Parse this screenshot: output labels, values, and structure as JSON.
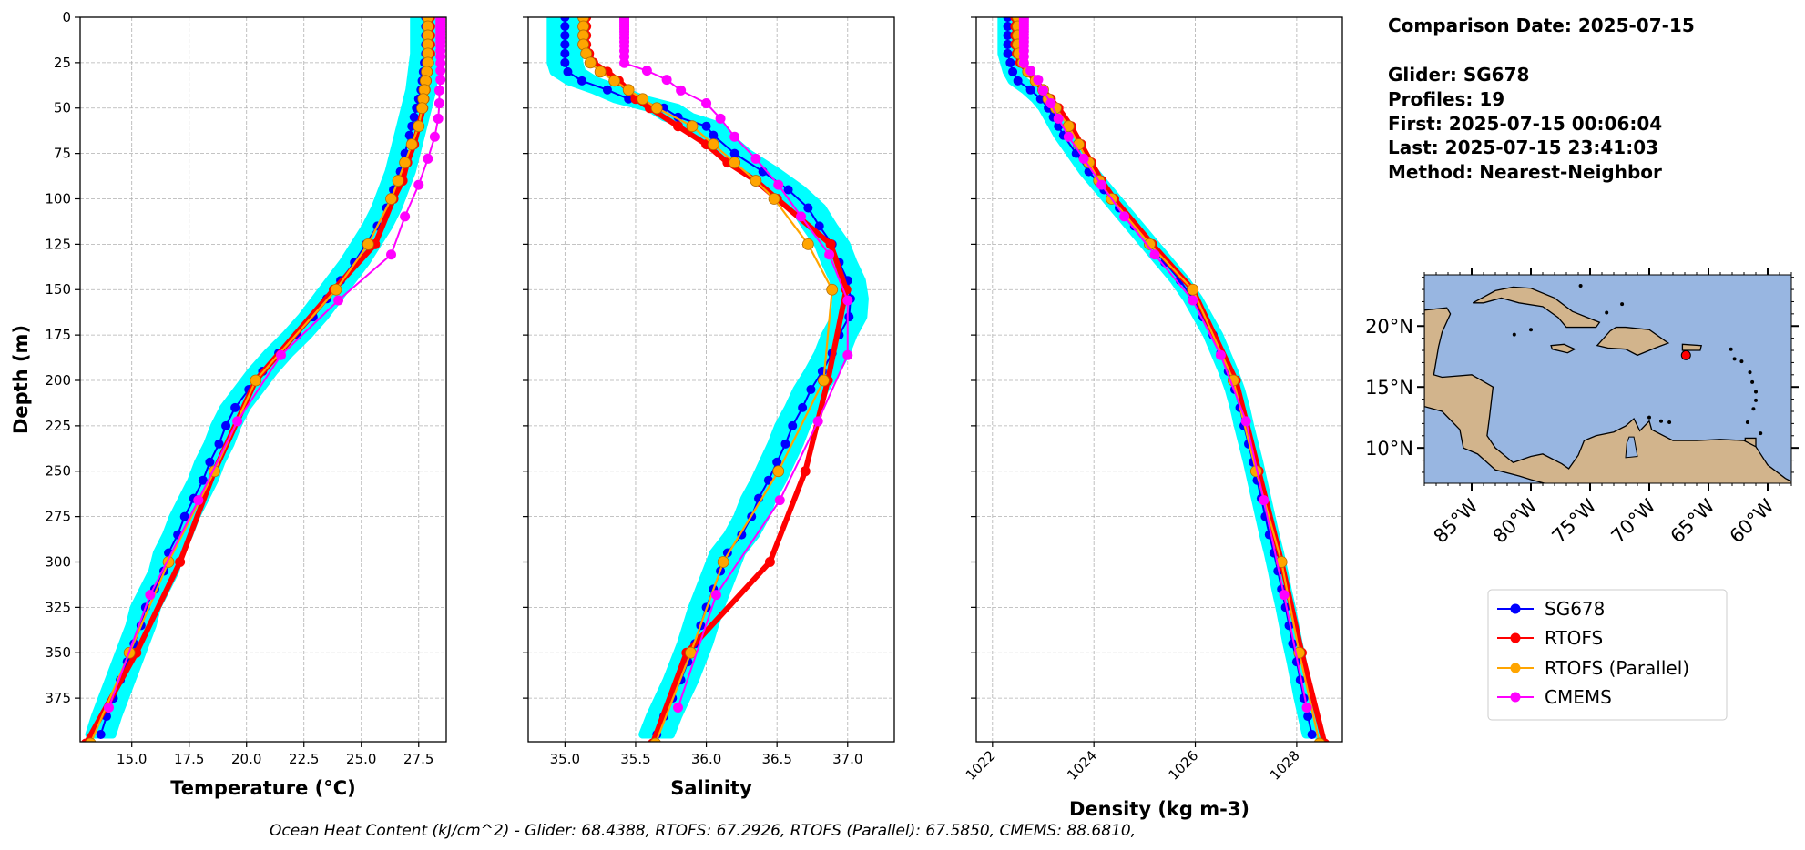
{
  "info": {
    "lines": [
      "Comparison Date: 2025-07-15",
      "",
      "Glider: SG678",
      "Profiles: 19",
      "First: 2025-07-15 00:06:04",
      "Last: 2025-07-15 23:41:03",
      "Method: Nearest-Neighbor"
    ]
  },
  "footer": "Ocean Heat Content (kJ/cm^2) - Glider: 68.4388,  RTOFS: 67.2926,  RTOFS (Parallel): 67.5850,  CMEMS: 88.6810,",
  "legend": {
    "position": "right, below map",
    "entries": [
      {
        "label": "SG678",
        "color": "#0000ff"
      },
      {
        "label": "RTOFS",
        "color": "#ff0000"
      },
      {
        "label": "RTOFS (Parallel)",
        "color": "#ffa500"
      },
      {
        "label": "CMEMS",
        "color": "#ff00ff"
      }
    ]
  },
  "chart_data": [
    {
      "type": "line",
      "id": "temperature",
      "xlabel": "Temperature (°C)",
      "ylabel": "Depth (m)",
      "xlim": [
        12.75,
        28.7
      ],
      "ylim": [
        399,
        0
      ],
      "grid": true,
      "xticks": [
        "15.0",
        "17.5",
        "20.0",
        "22.5",
        "25.0",
        "27.5"
      ],
      "yticks": [
        "0",
        "25",
        "50",
        "75",
        "100",
        "125",
        "150",
        "175",
        "200",
        "225",
        "250",
        "275",
        "300",
        "325",
        "350",
        "375"
      ]
    },
    {
      "type": "line",
      "id": "salinity",
      "xlabel": "Salinity",
      "xlim": [
        34.74,
        37.33
      ],
      "ylim": [
        399,
        0
      ],
      "grid": true,
      "xticks": [
        "35.0",
        "35.5",
        "36.0",
        "36.5",
        "37.0"
      ]
    },
    {
      "type": "line",
      "id": "density",
      "xlabel": "Density (kg m-3)",
      "xlim": [
        1021.68,
        1028.9
      ],
      "ylim": [
        399,
        0
      ],
      "grid": true,
      "xticks": [
        "1022",
        "1024",
        "1026",
        "1028"
      ]
    }
  ],
  "series": {
    "glider": {
      "name": "SG678",
      "color": "#0000ff",
      "profiles_color": "#00ffff",
      "profiles_spread": {
        "temperature": 0.5,
        "salinity": 0.1,
        "density": 0.12
      },
      "depth": [
        0,
        5,
        10,
        15,
        20,
        25,
        30,
        35,
        40,
        45,
        50,
        55,
        60,
        65,
        75,
        85,
        95,
        105,
        115,
        125,
        135,
        145,
        155,
        165,
        175,
        185,
        195,
        205,
        215,
        225,
        235,
        245,
        255,
        265,
        275,
        285,
        295,
        305,
        315,
        325,
        335,
        345,
        355,
        365,
        375,
        385,
        395
      ],
      "temperature": [
        27.8,
        27.8,
        27.8,
        27.8,
        27.8,
        27.75,
        27.7,
        27.65,
        27.6,
        27.5,
        27.4,
        27.3,
        27.2,
        27.1,
        26.9,
        26.7,
        26.4,
        26.1,
        25.7,
        25.2,
        24.7,
        24.1,
        23.5,
        22.9,
        22.2,
        21.4,
        20.7,
        20.1,
        19.5,
        19.1,
        18.8,
        18.4,
        18.1,
        17.7,
        17.3,
        17.0,
        16.6,
        16.4,
        16.0,
        15.6,
        15.4,
        15.1,
        14.8,
        14.5,
        14.2,
        13.9,
        13.65
      ],
      "salinity": [
        35.0,
        35.0,
        35.0,
        35.0,
        35.0,
        35.0,
        35.02,
        35.12,
        35.3,
        35.45,
        35.7,
        35.8,
        36.0,
        36.05,
        36.2,
        36.4,
        36.58,
        36.72,
        36.8,
        36.89,
        36.94,
        37.0,
        37.02,
        37.01,
        36.94,
        36.89,
        36.82,
        36.74,
        36.68,
        36.61,
        36.56,
        36.5,
        36.44,
        36.37,
        36.32,
        36.25,
        36.15,
        36.1,
        36.05,
        36.0,
        35.96,
        35.92,
        35.87,
        35.82,
        35.76,
        35.7,
        35.65
      ],
      "density": [
        1022.3,
        1022.3,
        1022.3,
        1022.3,
        1022.3,
        1022.35,
        1022.4,
        1022.5,
        1022.75,
        1022.95,
        1023.1,
        1023.2,
        1023.3,
        1023.4,
        1023.65,
        1023.9,
        1024.2,
        1024.5,
        1024.8,
        1025.1,
        1025.4,
        1025.7,
        1025.95,
        1026.15,
        1026.35,
        1026.5,
        1026.65,
        1026.78,
        1026.88,
        1026.96,
        1027.05,
        1027.14,
        1027.22,
        1027.3,
        1027.38,
        1027.46,
        1027.55,
        1027.63,
        1027.7,
        1027.78,
        1027.85,
        1027.92,
        1028.0,
        1028.07,
        1028.14,
        1028.22,
        1028.3
      ]
    },
    "rtofs": {
      "name": "RTOFS",
      "color": "#ff0000",
      "depth": [
        0,
        5,
        10,
        15,
        20,
        25,
        30,
        35,
        40,
        45,
        50,
        60,
        70,
        80,
        90,
        100,
        125,
        150,
        200,
        250,
        300,
        350,
        400
      ],
      "temperature": [
        28.0,
        28.0,
        28.0,
        28.0,
        28.0,
        27.95,
        27.9,
        27.85,
        27.8,
        27.75,
        27.7,
        27.5,
        27.3,
        27.0,
        26.8,
        26.4,
        25.6,
        23.8,
        20.4,
        18.6,
        17.1,
        15.2,
        13.0
      ],
      "salinity": [
        35.15,
        35.15,
        35.15,
        35.15,
        35.17,
        35.2,
        35.3,
        35.38,
        35.45,
        35.5,
        35.6,
        35.8,
        36.0,
        36.15,
        36.35,
        36.5,
        36.88,
        36.99,
        36.86,
        36.7,
        36.45,
        35.86,
        35.62
      ],
      "density": [
        1022.45,
        1022.45,
        1022.45,
        1022.45,
        1022.48,
        1022.55,
        1022.7,
        1022.85,
        1023.0,
        1023.15,
        1023.3,
        1023.55,
        1023.75,
        1023.95,
        1024.15,
        1024.4,
        1025.15,
        1025.95,
        1026.8,
        1027.25,
        1027.7,
        1028.1,
        1028.55
      ]
    },
    "rtofs_parallel": {
      "name": "RTOFS (Parallel)",
      "color": "#ffa500",
      "depth": [
        0,
        5,
        10,
        15,
        20,
        25,
        30,
        35,
        40,
        45,
        50,
        60,
        70,
        80,
        90,
        100,
        125,
        150,
        200,
        250,
        300,
        350,
        400
      ],
      "temperature": [
        27.9,
        27.9,
        27.9,
        27.9,
        27.9,
        27.9,
        27.85,
        27.8,
        27.75,
        27.7,
        27.65,
        27.5,
        27.2,
        26.9,
        26.6,
        26.3,
        25.3,
        23.9,
        20.4,
        18.6,
        16.6,
        14.9,
        13.2
      ],
      "salinity": [
        35.13,
        35.13,
        35.13,
        35.13,
        35.15,
        35.18,
        35.25,
        35.35,
        35.45,
        35.55,
        35.65,
        35.9,
        36.05,
        36.2,
        36.35,
        36.48,
        36.72,
        36.89,
        36.83,
        36.51,
        36.12,
        35.89,
        35.64
      ],
      "density": [
        1022.5,
        1022.5,
        1022.5,
        1022.5,
        1022.52,
        1022.6,
        1022.7,
        1022.85,
        1023.0,
        1023.1,
        1023.25,
        1023.5,
        1023.7,
        1023.9,
        1024.1,
        1024.35,
        1025.1,
        1025.95,
        1026.75,
        1027.2,
        1027.7,
        1028.05,
        1028.45
      ]
    },
    "cmems": {
      "name": "CMEMS",
      "color": "#ff00ff",
      "depth": [
        0.5,
        1.5,
        2.6,
        3.8,
        5.1,
        6.4,
        7.9,
        9.6,
        11.4,
        13.5,
        15.8,
        18.5,
        21.6,
        25.2,
        29.4,
        34.4,
        40.3,
        47.4,
        55.8,
        65.8,
        77.9,
        92.3,
        109.7,
        130.7,
        155.9,
        186.1,
        222.5,
        266.0,
        318.1,
        380.2
      ],
      "temperature": [
        28.45,
        28.45,
        28.45,
        28.45,
        28.45,
        28.45,
        28.45,
        28.45,
        28.45,
        28.45,
        28.45,
        28.45,
        28.45,
        28.45,
        28.45,
        28.45,
        28.4,
        28.4,
        28.35,
        28.2,
        27.9,
        27.5,
        26.9,
        26.3,
        24.0,
        21.5,
        19.6,
        17.9,
        15.8,
        14.0
      ],
      "salinity": [
        35.42,
        35.42,
        35.42,
        35.42,
        35.42,
        35.42,
        35.42,
        35.42,
        35.42,
        35.42,
        35.42,
        35.42,
        35.42,
        35.42,
        35.58,
        35.72,
        35.82,
        36.0,
        36.1,
        36.2,
        36.35,
        36.51,
        36.67,
        36.87,
        37.0,
        37.0,
        36.79,
        36.52,
        36.07,
        35.8
      ],
      "density": [
        1022.62,
        1022.62,
        1022.62,
        1022.62,
        1022.62,
        1022.62,
        1022.62,
        1022.62,
        1022.62,
        1022.62,
        1022.62,
        1022.62,
        1022.62,
        1022.62,
        1022.75,
        1022.9,
        1023.0,
        1023.15,
        1023.3,
        1023.5,
        1023.8,
        1024.15,
        1024.6,
        1025.2,
        1025.95,
        1026.5,
        1027.0,
        1027.35,
        1027.75,
        1028.2
      ]
    }
  },
  "map": {
    "extent_lon": [
      -89.0,
      -58.0
    ],
    "extent_lat": [
      7.1,
      24.2
    ],
    "ocean_color": "#98b6e1",
    "land_color": "#d2b48c",
    "lon_ticks": [
      {
        "value": -85,
        "label": "85°W"
      },
      {
        "value": -80,
        "label": "80°W"
      },
      {
        "value": -75,
        "label": "75°W"
      },
      {
        "value": -70,
        "label": "70°W"
      },
      {
        "value": -65,
        "label": "65°W"
      },
      {
        "value": -60,
        "label": "60°W"
      }
    ],
    "lat_ticks": [
      {
        "value": 20,
        "label": "20°N"
      },
      {
        "value": 15,
        "label": "15°N"
      },
      {
        "value": 10,
        "label": "10°N"
      }
    ],
    "glider_position": {
      "lon": -66.9,
      "lat": 17.6,
      "color": "#ff0000"
    }
  }
}
